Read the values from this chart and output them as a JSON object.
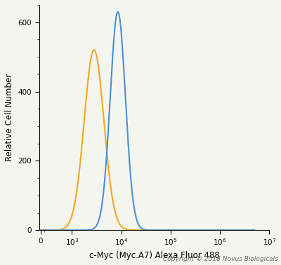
{
  "orange_peak_x": 2800,
  "orange_peak_y": 520,
  "orange_sigma": 0.2,
  "blue_peak_x": 8500,
  "blue_peak_y": 630,
  "blue_sigma": 0.155,
  "orange_color": "#F5A623",
  "blue_color": "#4A90D9",
  "orange_lw": 1.5,
  "blue_lw": 1.5,
  "xlabel": "c-Myc (Myc.A7) Alexa Fluor 488",
  "ylabel": "Relative Cell Number",
  "ylim": [
    0,
    650
  ],
  "yticks": [
    0,
    200,
    400,
    600
  ],
  "xticks": [
    0,
    1000,
    10000,
    100000,
    1000000,
    10000000
  ],
  "xticklabels": [
    "0",
    "10$^3$",
    "10$^4$",
    "10$^5$",
    "10$^6$",
    "10$^7$"
  ],
  "copyright": "Copyright © 2018 Novus Biologicals",
  "copyright_fontsize": 6.5,
  "axis_fontsize": 8.5,
  "tick_fontsize": 7.5,
  "background_color": "#f5f5f0",
  "linthresh": 500
}
